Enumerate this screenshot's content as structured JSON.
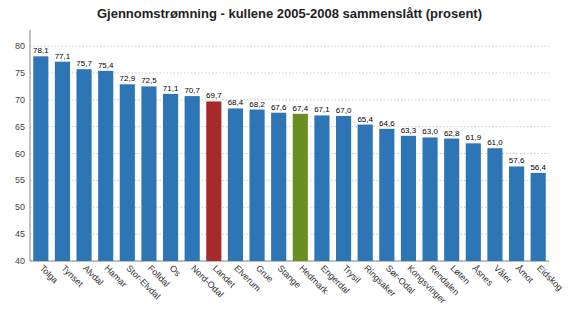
{
  "chart_data": {
    "type": "bar",
    "title": "Gjennomstrømning - kullene 2005-2008 sammenslått (prosent)",
    "categories": [
      "Tolga",
      "Tynset",
      "Alvdal",
      "Hamar",
      "Stor-Elvdal",
      "Folldal",
      "Os",
      "Nord-Odal",
      "Landet",
      "Elverum",
      "Grue",
      "Stange",
      "Hedmark",
      "Engerdal",
      "Trysil",
      "Ringsaker",
      "Sør-Odal",
      "Kongsvinger",
      "Rendalen",
      "Løten",
      "Åsnes",
      "Våler",
      "Åmot",
      "Eidskog"
    ],
    "values": [
      78.1,
      77.1,
      75.7,
      75.4,
      72.9,
      72.5,
      71.1,
      70.7,
      69.7,
      68.4,
      68.2,
      67.6,
      67.4,
      67.1,
      67.0,
      65.4,
      64.6,
      63.3,
      63.0,
      62.8,
      61.9,
      61.0,
      57.6,
      56.4
    ],
    "value_labels": [
      "78,1",
      "77,1",
      "75,7",
      "75,4",
      "72,9",
      "72,5",
      "71,1",
      "70,7",
      "69,7",
      "68,4",
      "68,2",
      "67,6",
      "67,4",
      "67,1",
      "67,0",
      "65,4",
      "64,6",
      "63,3",
      "63,0",
      "62,8",
      "61,9",
      "61,0",
      "57,6",
      "56,4"
    ],
    "colors": [
      "#2E75B6",
      "#2E75B6",
      "#2E75B6",
      "#2E75B6",
      "#2E75B6",
      "#2E75B6",
      "#2E75B6",
      "#2E75B6",
      "#A52A2A",
      "#2E75B6",
      "#2E75B6",
      "#2E75B6",
      "#6B8E23",
      "#2E75B6",
      "#2E75B6",
      "#2E75B6",
      "#2E75B6",
      "#2E75B6",
      "#2E75B6",
      "#2E75B6",
      "#2E75B6",
      "#2E75B6",
      "#2E75B6",
      "#2E75B6"
    ],
    "ylim": [
      40,
      83
    ],
    "yticks": [
      40,
      45,
      50,
      55,
      60,
      65,
      70,
      75,
      80
    ],
    "grid": true,
    "data_labels": true
  }
}
